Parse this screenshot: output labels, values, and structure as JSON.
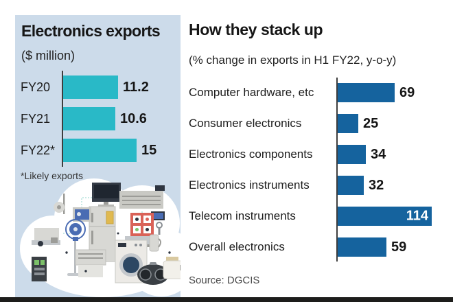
{
  "left_panel": {
    "title": "Electronics exports",
    "subtitle": "($ million)",
    "footnote": "*Likely exports"
  },
  "right_panel": {
    "title": "How they stack up",
    "subtitle": "(% change in exports in H1 FY22, y-o-y)",
    "source": "Source: DGCIS"
  },
  "chart_data": [
    {
      "type": "bar",
      "orientation": "horizontal",
      "title": "Electronics exports",
      "unit_label": "($ million)",
      "categories": [
        "FY20",
        "FY21",
        "FY22*"
      ],
      "values": [
        11.2,
        10.6,
        15
      ],
      "footnote": "*Likely exports",
      "bar_color": "#29b9c7",
      "grid": false,
      "value_labels_position": "outside-right"
    },
    {
      "type": "bar",
      "orientation": "horizontal",
      "title": "How they stack up",
      "unit_label": "(% change in exports in H1 FY22, y-o-y)",
      "categories": [
        "Computer hardware, etc",
        "Consumer electronics",
        "Electronics components",
        "Electronics instruments",
        "Telecom instruments",
        "Overall electronics"
      ],
      "values": [
        69,
        25,
        34,
        32,
        114,
        59
      ],
      "source": "Source: DGCIS",
      "bar_color": "#15639e",
      "grid": false,
      "value_labels_position": "outside-right-except-max-inside"
    }
  ],
  "illustration": {
    "description": "white cloud filled with electronics and home appliances",
    "items": [
      "monitor",
      "fridge",
      "microwave",
      "tv",
      "control-panel",
      "laptop",
      "washing-machine",
      "speaker",
      "toaster",
      "pedestal-fan",
      "tablet",
      "kitchen-mixer",
      "radio",
      "air-conditioner",
      "kettle",
      "antenna"
    ]
  },
  "colors": {
    "panel_background": "#ccdbea",
    "cyan_bar": "#29b9c7",
    "dark_blue_bar": "#15639e",
    "axis_line": "#3d3d3d",
    "bottom_strip": "#1d1d1b",
    "text": "#191919",
    "inside_value_text": "#ffffff"
  }
}
